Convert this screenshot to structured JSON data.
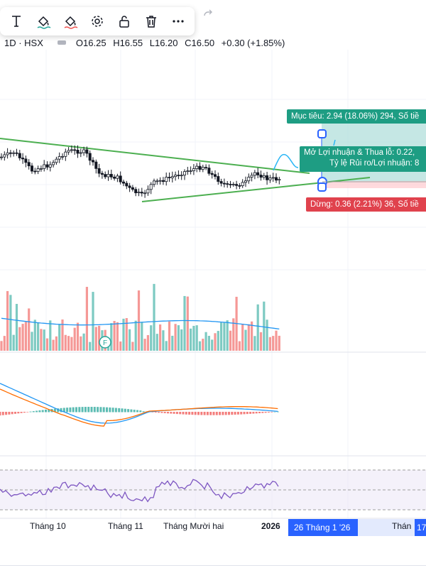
{
  "toolbar": {
    "items": [
      {
        "name": "text-tool",
        "icon": "text-icon"
      },
      {
        "name": "fill-color",
        "icon": "paint-bucket-icon"
      },
      {
        "name": "line-color",
        "icon": "paint-bucket-icon"
      },
      {
        "name": "settings",
        "icon": "gear-icon"
      },
      {
        "name": "lock",
        "icon": "lock-icon"
      },
      {
        "name": "delete",
        "icon": "trash-icon"
      },
      {
        "name": "more",
        "icon": "more-icon"
      }
    ]
  },
  "legend": {
    "interval_exchange": "1D · HSX",
    "open": "O16.25",
    "high": "H16.55",
    "low": "L16.20",
    "close": "C16.50",
    "change": "+0.30 (+1.85%)"
  },
  "position": {
    "target_label": "Mục tiêu: 2.94 (18.06%) 294, Số tiề",
    "pnl_line1": "Mở Lợi nhuận & Thua lỗ: 0.22,",
    "pnl_line2": "Tỷ lệ Rủi ro/Lợi nhuận: 8",
    "stop_label": "Dừng: 0.36 (2.21%) 36, Số tiề"
  },
  "volume": {
    "marker": "F"
  },
  "time_axis": {
    "labels": [
      "Tháng 10",
      "Tháng 11",
      "Tháng Mười hai",
      "2026"
    ],
    "highlight_start": "26 Tháng 1 '26",
    "range_end_partial": "Thán",
    "highlight_end": "17"
  },
  "colors": {
    "up": "#26a69a",
    "down": "#ef5350",
    "trendline": "#4caf50",
    "profit_zone": "#b2dfdb",
    "loss_zone": "#ffcdd2",
    "rsi": "#7e57c2",
    "macd": "#2196f3",
    "signal": "#ff6d00"
  }
}
